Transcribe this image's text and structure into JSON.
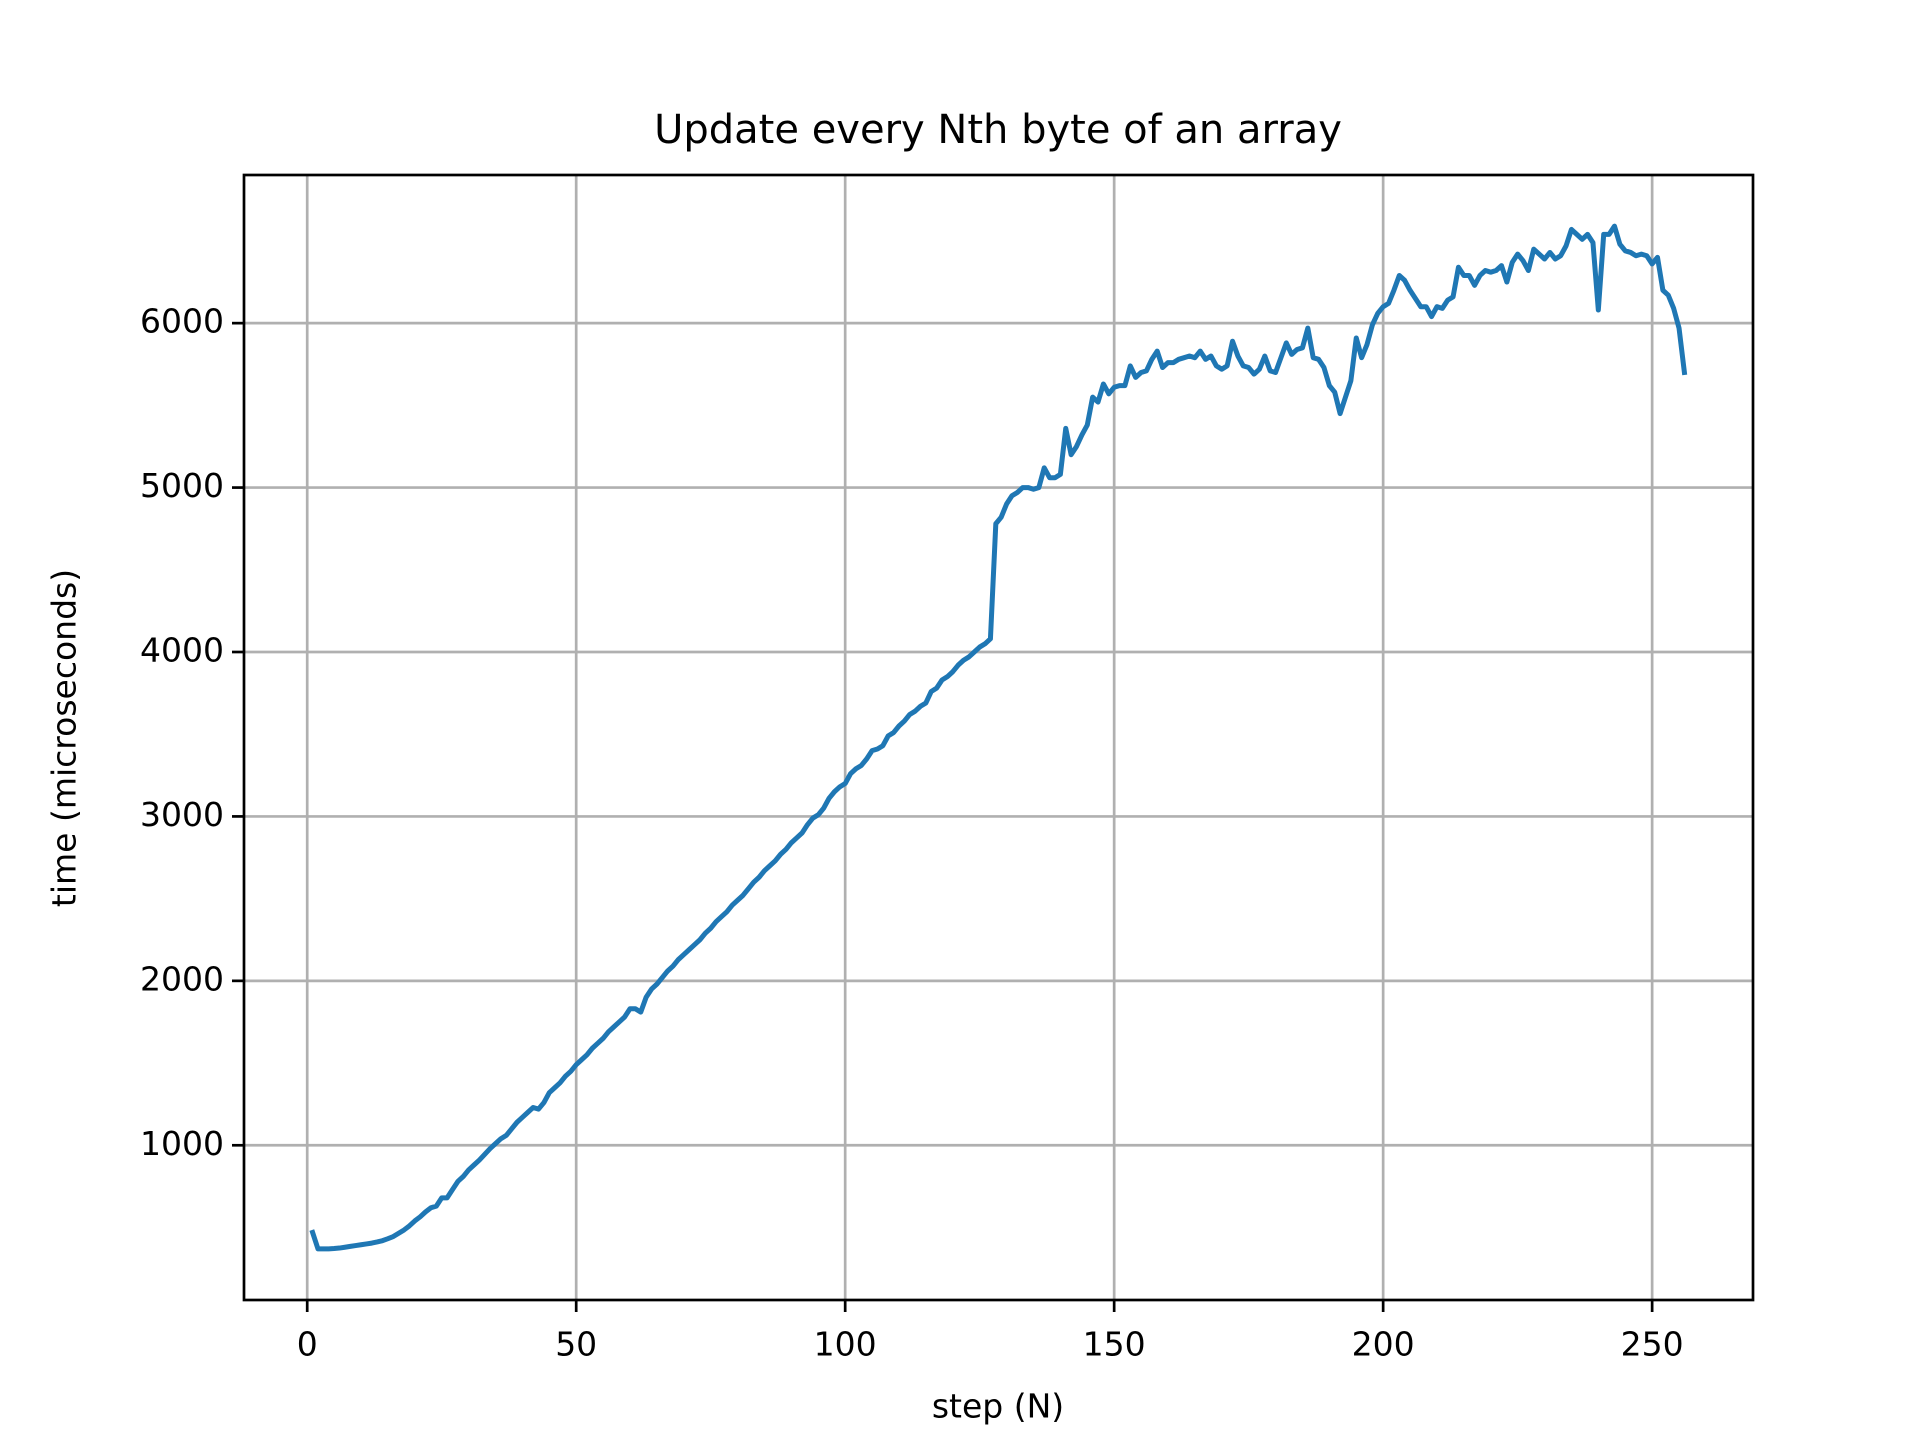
{
  "chart_data": {
    "type": "line",
    "title": "Update every Nth byte of an array",
    "xlabel": "step (N)",
    "ylabel": "time (microseconds)",
    "x": [
      1,
      2,
      3,
      4,
      5,
      6,
      7,
      8,
      9,
      10,
      11,
      12,
      13,
      14,
      15,
      16,
      17,
      18,
      19,
      20,
      21,
      22,
      23,
      24,
      25,
      26,
      27,
      28,
      29,
      30,
      31,
      32,
      33,
      34,
      35,
      36,
      37,
      38,
      39,
      40,
      41,
      42,
      43,
      44,
      45,
      46,
      47,
      48,
      49,
      50,
      51,
      52,
      53,
      54,
      55,
      56,
      57,
      58,
      59,
      60,
      61,
      62,
      63,
      64,
      65,
      66,
      67,
      68,
      69,
      70,
      71,
      72,
      73,
      74,
      75,
      76,
      77,
      78,
      79,
      80,
      81,
      82,
      83,
      84,
      85,
      86,
      87,
      88,
      89,
      90,
      91,
      92,
      93,
      94,
      95,
      96,
      97,
      98,
      99,
      100,
      101,
      102,
      103,
      104,
      105,
      106,
      107,
      108,
      109,
      110,
      111,
      112,
      113,
      114,
      115,
      116,
      117,
      118,
      119,
      120,
      121,
      122,
      123,
      124,
      125,
      126,
      127,
      128,
      129,
      130,
      131,
      132,
      133,
      134,
      135,
      136,
      137,
      138,
      139,
      140,
      141,
      142,
      143,
      144,
      145,
      146,
      147,
      148,
      149,
      150,
      151,
      152,
      153,
      154,
      155,
      156,
      157,
      158,
      159,
      160,
      161,
      162,
      163,
      164,
      165,
      166,
      167,
      168,
      169,
      170,
      171,
      172,
      173,
      174,
      175,
      176,
      177,
      178,
      179,
      180,
      181,
      182,
      183,
      184,
      185,
      186,
      187,
      188,
      189,
      190,
      191,
      192,
      193,
      194,
      195,
      196,
      197,
      198,
      199,
      200,
      201,
      202,
      203,
      204,
      205,
      206,
      207,
      208,
      209,
      210,
      211,
      212,
      213,
      214,
      215,
      216,
      217,
      218,
      219,
      220,
      221,
      222,
      223,
      224,
      225,
      226,
      227,
      228,
      229,
      230,
      231,
      232,
      233,
      234,
      235,
      236,
      237,
      238,
      239,
      240,
      241,
      242,
      243,
      244,
      245,
      246,
      247,
      248,
      249,
      250,
      251,
      252,
      253,
      254,
      255,
      256
    ],
    "series": [
      {
        "color": "#1f77b4",
        "values": [
          470,
          370,
          370,
          370,
          372,
          375,
          380,
          385,
          390,
          395,
          400,
          405,
          412,
          420,
          432,
          445,
          465,
          485,
          510,
          540,
          565,
          595,
          620,
          630,
          680,
          680,
          730,
          780,
          810,
          850,
          880,
          910,
          945,
          980,
          1010,
          1040,
          1060,
          1100,
          1140,
          1170,
          1200,
          1230,
          1220,
          1260,
          1320,
          1350,
          1380,
          1420,
          1450,
          1490,
          1520,
          1550,
          1590,
          1620,
          1650,
          1690,
          1720,
          1750,
          1780,
          1830,
          1830,
          1810,
          1900,
          1950,
          1980,
          2020,
          2060,
          2090,
          2130,
          2160,
          2190,
          2220,
          2250,
          2290,
          2320,
          2360,
          2390,
          2420,
          2460,
          2490,
          2520,
          2560,
          2600,
          2630,
          2670,
          2700,
          2730,
          2770,
          2800,
          2840,
          2870,
          2900,
          2950,
          2990,
          3010,
          3050,
          3110,
          3150,
          3180,
          3200,
          3260,
          3290,
          3310,
          3350,
          3400,
          3410,
          3430,
          3490,
          3510,
          3550,
          3580,
          3620,
          3640,
          3670,
          3690,
          3760,
          3780,
          3830,
          3850,
          3880,
          3920,
          3950,
          3970,
          4000,
          4030,
          4050,
          4080,
          4780,
          4820,
          4900,
          4950,
          4970,
          5000,
          5000,
          4990,
          5000,
          5120,
          5060,
          5060,
          5080,
          5360,
          5200,
          5250,
          5320,
          5380,
          5550,
          5520,
          5630,
          5570,
          5610,
          5620,
          5620,
          5740,
          5670,
          5700,
          5710,
          5780,
          5830,
          5730,
          5760,
          5760,
          5780,
          5790,
          5800,
          5790,
          5830,
          5780,
          5800,
          5740,
          5720,
          5740,
          5890,
          5800,
          5740,
          5730,
          5690,
          5720,
          5800,
          5710,
          5700,
          5790,
          5880,
          5810,
          5840,
          5850,
          5970,
          5790,
          5780,
          5730,
          5620,
          5580,
          5450,
          5550,
          5650,
          5910,
          5790,
          5870,
          5990,
          6060,
          6100,
          6120,
          6200,
          6290,
          6260,
          6200,
          6150,
          6100,
          6100,
          6040,
          6100,
          6090,
          6140,
          6160,
          6340,
          6290,
          6290,
          6230,
          6290,
          6320,
          6310,
          6320,
          6350,
          6250,
          6370,
          6420,
          6380,
          6320,
          6450,
          6420,
          6390,
          6430,
          6390,
          6410,
          6470,
          6570,
          6540,
          6510,
          6540,
          6490,
          6080,
          6540,
          6540,
          6590,
          6480,
          6440,
          6430,
          6410,
          6420,
          6410,
          6360,
          6400,
          6200,
          6170,
          6090,
          5970,
          5700
        ]
      }
    ],
    "xlim": [
      -11.75,
      268.75
    ],
    "ylim": [
      59,
      6901
    ],
    "xticks": [
      0,
      50,
      100,
      150,
      200,
      250
    ],
    "yticks": [
      1000,
      2000,
      3000,
      4000,
      5000,
      6000
    ],
    "grid": true
  }
}
